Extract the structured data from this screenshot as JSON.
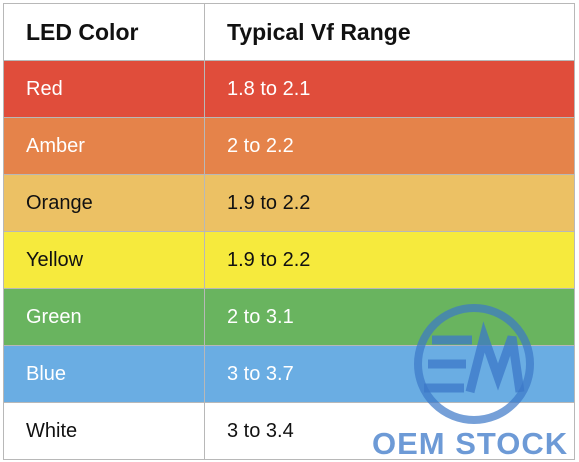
{
  "table": {
    "header": [
      "LED Color",
      "Typical Vf Range"
    ],
    "rows": [
      [
        "Red",
        "1.8 to 2.1"
      ],
      [
        "Amber",
        "2 to 2.2"
      ],
      [
        "Orange",
        "1.9 to 2.2"
      ],
      [
        "Yellow",
        "1.9 to 2.2"
      ],
      [
        "Green",
        "2 to 3.1"
      ],
      [
        "Blue",
        "3 to 3.7"
      ],
      [
        "White",
        "3 to 3.4"
      ]
    ]
  },
  "watermark": {
    "text": "OEM STOCK"
  }
}
